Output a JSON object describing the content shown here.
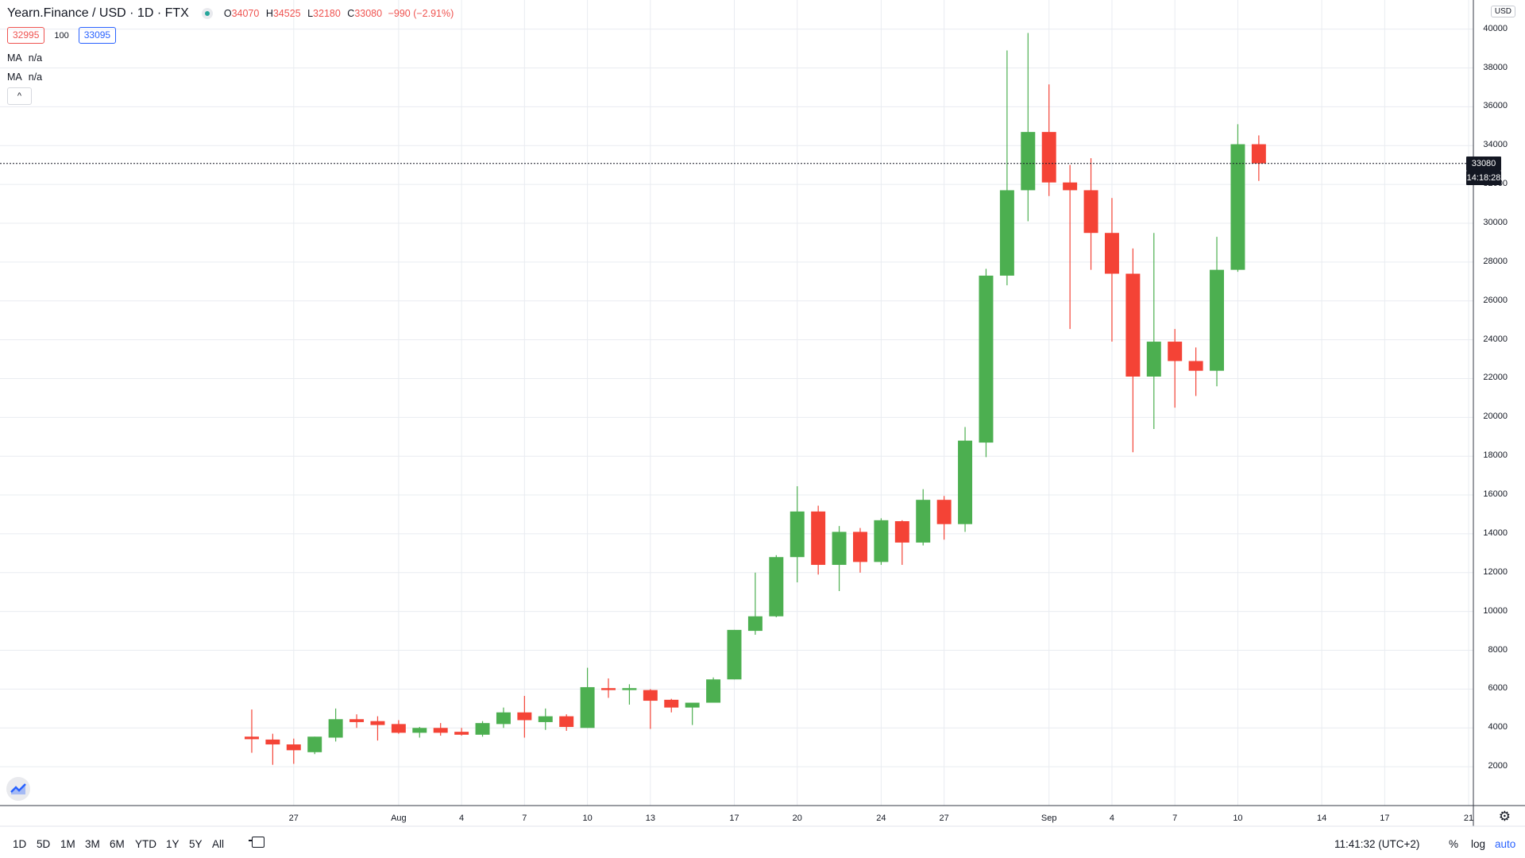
{
  "header": {
    "symbol": "Yearn.Finance / USD · 1D · FTX",
    "ohlc": {
      "o_label": "O",
      "o": "34070",
      "h_label": "H",
      "h": "34525",
      "l_label": "L",
      "l": "32180",
      "c_label": "C",
      "c": "33080",
      "change": "−990 (−2.91%)"
    },
    "bid": "32995",
    "spread": "100",
    "ask": "33095",
    "ma": [
      {
        "label": "MA",
        "value": "n/a"
      },
      {
        "label": "MA",
        "value": "n/a"
      }
    ],
    "collapse_icon": "^"
  },
  "price_axis": {
    "currency": "USD",
    "current_price": "33080",
    "countdown": "14:18:28"
  },
  "time_axis": {
    "labels": [
      "27",
      "Aug",
      "4",
      "7",
      "10",
      "13",
      "17",
      "20",
      "24",
      "27",
      "Sep",
      "4",
      "7",
      "10",
      "14",
      "17",
      "21"
    ]
  },
  "bottom_toolbar": {
    "ranges": [
      "1D",
      "5D",
      "1M",
      "3M",
      "6M",
      "YTD",
      "1Y",
      "5Y",
      "All"
    ],
    "clock": "11:41:32 (UTC+2)",
    "percent": "%",
    "log": "log",
    "auto": "auto"
  },
  "colors": {
    "up": "#4caf50",
    "down": "#f44336",
    "grid": "#e9ecf1"
  },
  "chart_data": {
    "type": "candlestick",
    "title": "Yearn.Finance / USD · 1D · FTX",
    "ylim": [
      0,
      41500
    ],
    "y_ticks": [
      2000,
      4000,
      6000,
      8000,
      10000,
      12000,
      14000,
      16000,
      18000,
      20000,
      22000,
      24000,
      26000,
      28000,
      30000,
      32000,
      34000,
      36000,
      38000,
      40000
    ],
    "x_ticks": [
      {
        "date": "2020-07-27",
        "label": "27"
      },
      {
        "date": "2020-08-01",
        "label": "Aug"
      },
      {
        "date": "2020-08-04",
        "label": "4"
      },
      {
        "date": "2020-08-07",
        "label": "7"
      },
      {
        "date": "2020-08-10",
        "label": "10"
      },
      {
        "date": "2020-08-13",
        "label": "13"
      },
      {
        "date": "2020-08-17",
        "label": "17"
      },
      {
        "date": "2020-08-20",
        "label": "20"
      },
      {
        "date": "2020-08-24",
        "label": "24"
      },
      {
        "date": "2020-08-27",
        "label": "27"
      },
      {
        "date": "2020-09-01",
        "label": "Sep"
      },
      {
        "date": "2020-09-04",
        "label": "4"
      },
      {
        "date": "2020-09-07",
        "label": "7"
      },
      {
        "date": "2020-09-10",
        "label": "10"
      },
      {
        "date": "2020-09-14",
        "label": "14"
      },
      {
        "date": "2020-09-17",
        "label": "17"
      },
      {
        "date": "2020-09-21",
        "label": "21"
      }
    ],
    "x_range": [
      "2020-07-13",
      "2020-09-21"
    ],
    "grid": true,
    "candles": [
      {
        "date": "2020-07-25",
        "open": 3550,
        "high": 4950,
        "low": 2720,
        "close": 3420
      },
      {
        "date": "2020-07-26",
        "open": 3400,
        "high": 3700,
        "low": 2100,
        "close": 3150
      },
      {
        "date": "2020-07-27",
        "open": 3150,
        "high": 3450,
        "low": 2150,
        "close": 2850
      },
      {
        "date": "2020-07-28",
        "open": 2750,
        "high": 3550,
        "low": 2650,
        "close": 3550
      },
      {
        "date": "2020-07-29",
        "open": 3500,
        "high": 5000,
        "low": 3300,
        "close": 4450
      },
      {
        "date": "2020-07-30",
        "open": 4450,
        "high": 4700,
        "low": 4000,
        "close": 4300
      },
      {
        "date": "2020-07-31",
        "open": 4350,
        "high": 4600,
        "low": 3350,
        "close": 4150
      },
      {
        "date": "2020-08-01",
        "open": 4200,
        "high": 4400,
        "low": 3700,
        "close": 3750
      },
      {
        "date": "2020-08-02",
        "open": 3750,
        "high": 4050,
        "low": 3500,
        "close": 4000
      },
      {
        "date": "2020-08-03",
        "open": 4000,
        "high": 4250,
        "low": 3600,
        "close": 3750
      },
      {
        "date": "2020-08-04",
        "open": 3800,
        "high": 4000,
        "low": 3600,
        "close": 3650
      },
      {
        "date": "2020-08-05",
        "open": 3650,
        "high": 4350,
        "low": 3550,
        "close": 4250
      },
      {
        "date": "2020-08-06",
        "open": 4200,
        "high": 5050,
        "low": 4000,
        "close": 4800
      },
      {
        "date": "2020-08-07",
        "open": 4800,
        "high": 5650,
        "low": 3500,
        "close": 4400
      },
      {
        "date": "2020-08-08",
        "open": 4300,
        "high": 5000,
        "low": 3900,
        "close": 4600
      },
      {
        "date": "2020-08-09",
        "open": 4600,
        "high": 4700,
        "low": 3850,
        "close": 4050
      },
      {
        "date": "2020-08-10",
        "open": 4000,
        "high": 7100,
        "low": 4000,
        "close": 6100
      },
      {
        "date": "2020-08-11",
        "open": 6050,
        "high": 6550,
        "low": 5550,
        "close": 5950
      },
      {
        "date": "2020-08-12",
        "open": 5950,
        "high": 6250,
        "low": 5200,
        "close": 6050
      },
      {
        "date": "2020-08-13",
        "open": 5950,
        "high": 6000,
        "low": 3950,
        "close": 5400
      },
      {
        "date": "2020-08-14",
        "open": 5450,
        "high": 5500,
        "low": 4800,
        "close": 5050
      },
      {
        "date": "2020-08-15",
        "open": 5050,
        "high": 5300,
        "low": 4150,
        "close": 5300
      },
      {
        "date": "2020-08-16",
        "open": 5300,
        "high": 6600,
        "low": 5300,
        "close": 6500
      },
      {
        "date": "2020-08-17",
        "open": 6500,
        "high": 9050,
        "low": 6500,
        "close": 9050
      },
      {
        "date": "2020-08-18",
        "open": 9000,
        "high": 12000,
        "low": 8800,
        "close": 9750
      },
      {
        "date": "2020-08-19",
        "open": 9750,
        "high": 12900,
        "low": 9700,
        "close": 12800
      },
      {
        "date": "2020-08-20",
        "open": 12800,
        "high": 16450,
        "low": 11500,
        "close": 15150
      },
      {
        "date": "2020-08-21",
        "open": 15150,
        "high": 15450,
        "low": 11900,
        "close": 12400
      },
      {
        "date": "2020-08-22",
        "open": 12400,
        "high": 14400,
        "low": 11050,
        "close": 14100
      },
      {
        "date": "2020-08-23",
        "open": 14100,
        "high": 14300,
        "low": 12000,
        "close": 12550
      },
      {
        "date": "2020-08-24",
        "open": 12550,
        "high": 14800,
        "low": 12400,
        "close": 14700
      },
      {
        "date": "2020-08-25",
        "open": 14650,
        "high": 14700,
        "low": 12400,
        "close": 13550
      },
      {
        "date": "2020-08-26",
        "open": 13550,
        "high": 16300,
        "low": 13400,
        "close": 15750
      },
      {
        "date": "2020-08-27",
        "open": 15750,
        "high": 15950,
        "low": 13700,
        "close": 14500
      },
      {
        "date": "2020-08-28",
        "open": 14500,
        "high": 19500,
        "low": 14100,
        "close": 18800
      },
      {
        "date": "2020-08-29",
        "open": 18700,
        "high": 27650,
        "low": 17950,
        "close": 27300
      },
      {
        "date": "2020-08-30",
        "open": 27300,
        "high": 38900,
        "low": 26800,
        "close": 31700
      },
      {
        "date": "2020-08-31",
        "open": 31700,
        "high": 39800,
        "low": 30100,
        "close": 34700
      },
      {
        "date": "2020-09-01",
        "open": 34700,
        "high": 37150,
        "low": 31400,
        "close": 32100
      },
      {
        "date": "2020-09-02",
        "open": 32100,
        "high": 33000,
        "low": 24550,
        "close": 31700
      },
      {
        "date": "2020-09-03",
        "open": 31700,
        "high": 33350,
        "low": 27600,
        "close": 29500
      },
      {
        "date": "2020-09-04",
        "open": 29500,
        "high": 31300,
        "low": 23900,
        "close": 27400
      },
      {
        "date": "2020-09-05",
        "open": 27400,
        "high": 28700,
        "low": 18200,
        "close": 22100
      },
      {
        "date": "2020-09-06",
        "open": 22100,
        "high": 29500,
        "low": 19400,
        "close": 23900
      },
      {
        "date": "2020-09-07",
        "open": 23900,
        "high": 24550,
        "low": 20500,
        "close": 22900
      },
      {
        "date": "2020-09-08",
        "open": 22900,
        "high": 23600,
        "low": 21100,
        "close": 22400
      },
      {
        "date": "2020-09-09",
        "open": 22400,
        "high": 29300,
        "low": 21600,
        "close": 27600
      },
      {
        "date": "2020-09-10",
        "open": 27600,
        "high": 35100,
        "low": 27500,
        "close": 34070
      },
      {
        "date": "2020-09-11",
        "open": 34070,
        "high": 34525,
        "low": 32180,
        "close": 33080
      }
    ]
  }
}
